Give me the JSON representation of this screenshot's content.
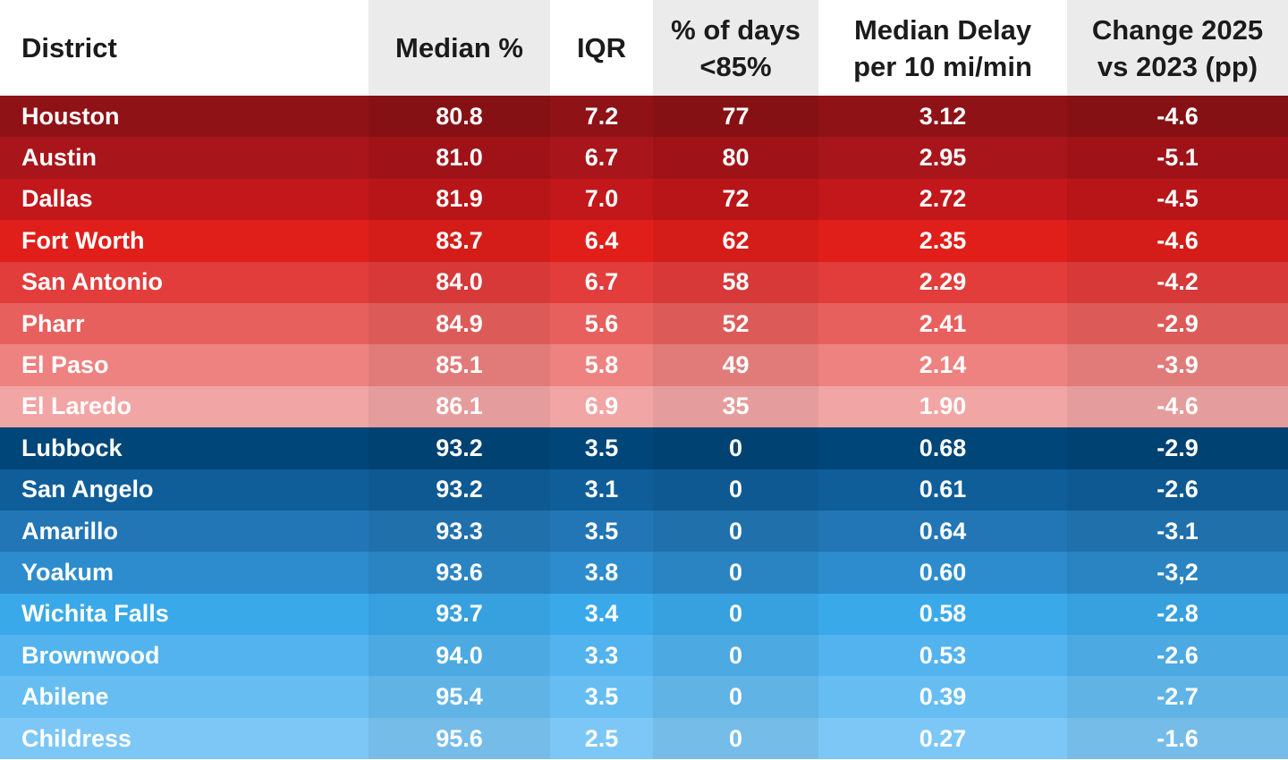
{
  "table": {
    "header": [
      "District",
      "Median %",
      "IQR",
      "% of days\n<85%",
      "Median Delay\nper 10 mi/min",
      "Change 2025\nvs 2023 (pp)"
    ],
    "rows": [
      [
        "Houston",
        "80.8",
        "7.2",
        "77",
        "3.12",
        "-4.6"
      ],
      [
        "Austin",
        "81.0",
        "6.7",
        "80",
        "2.95",
        "-5.1"
      ],
      [
        "Dallas",
        "81.9",
        "7.0",
        "72",
        "2.72",
        "-4.5"
      ],
      [
        "Fort Worth",
        "83.7",
        "6.4",
        "62",
        "2.35",
        "-4.6"
      ],
      [
        "San Antonio",
        "84.0",
        "6.7",
        "58",
        "2.29",
        "-4.2"
      ],
      [
        "Pharr",
        "84.9",
        "5.6",
        "52",
        "2.41",
        "-2.9"
      ],
      [
        "El Paso",
        "85.1",
        "5.8",
        "49",
        "2.14",
        "-3.9"
      ],
      [
        "El Laredo",
        "86.1",
        "6.9",
        "35",
        "1.90",
        "-4.6"
      ],
      [
        "Lubbock",
        "93.2",
        "3.5",
        "0",
        "0.68",
        "-2.9"
      ],
      [
        "San Angelo",
        "93.2",
        "3.1",
        "0",
        "0.61",
        "-2.6"
      ],
      [
        "Amarillo",
        "93.3",
        "3.5",
        "0",
        "0.64",
        "-3.1"
      ],
      [
        "Yoakum",
        "93.6",
        "3.8",
        "0",
        "0.60",
        "-3,2"
      ],
      [
        "Wichita Falls",
        "93.7",
        "3.4",
        "0",
        "0.58",
        "-2.8"
      ],
      [
        "Brownwood",
        "94.0",
        "3.3",
        "0",
        "0.53",
        "-2.6"
      ],
      [
        "Abilene",
        "95.4",
        "3.5",
        "0",
        "0.39",
        "-2.7"
      ],
      [
        "Childress",
        "95.6",
        "2.5",
        "0",
        "0.27",
        "-1.6"
      ]
    ]
  }
}
